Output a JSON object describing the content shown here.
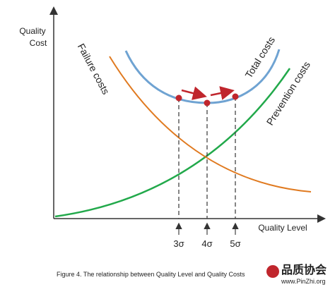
{
  "axes": {
    "y_label_line1": "Quality",
    "y_label_line2": "Cost",
    "x_label": "Quality Level"
  },
  "curves": {
    "failure": "Failure costs",
    "total": "Total costs",
    "prevention": "Prevention costs"
  },
  "sigma_levels": [
    "3σ",
    "4σ",
    "5σ"
  ],
  "caption": "Figure 4. The relationship between Quality Level and Quality Costs",
  "watermark": {
    "name": "品质协会",
    "url": "www.PinZhi.org"
  }
}
